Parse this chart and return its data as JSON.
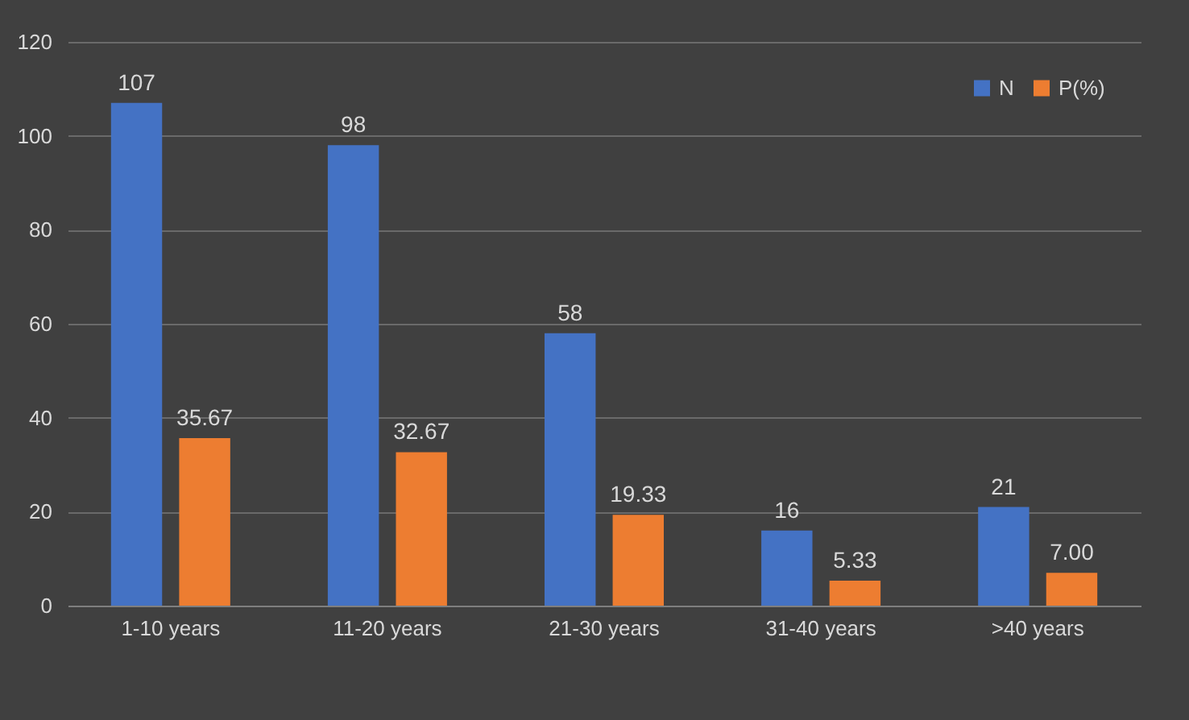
{
  "chart_data": {
    "type": "bar",
    "categories": [
      "1-10 years",
      "11-20 years",
      "21-30 years",
      "31-40 years",
      ">40 years"
    ],
    "series": [
      {
        "name": "N",
        "color": "#4472c4",
        "values": [
          107,
          98,
          58,
          16,
          21
        ],
        "value_labels": [
          "107",
          "98",
          "58",
          "16",
          "21"
        ]
      },
      {
        "name": "P(%)",
        "color": "#ed7d31",
        "values": [
          35.67,
          32.67,
          19.33,
          5.33,
          7.0
        ],
        "value_labels": [
          "35.67",
          "32.67",
          "19.33",
          "5.33",
          "7.00"
        ]
      }
    ],
    "ylim": [
      0,
      120
    ],
    "yticks": [
      0,
      20,
      40,
      60,
      80,
      100,
      120
    ],
    "grid": "y",
    "legend": "top right"
  }
}
